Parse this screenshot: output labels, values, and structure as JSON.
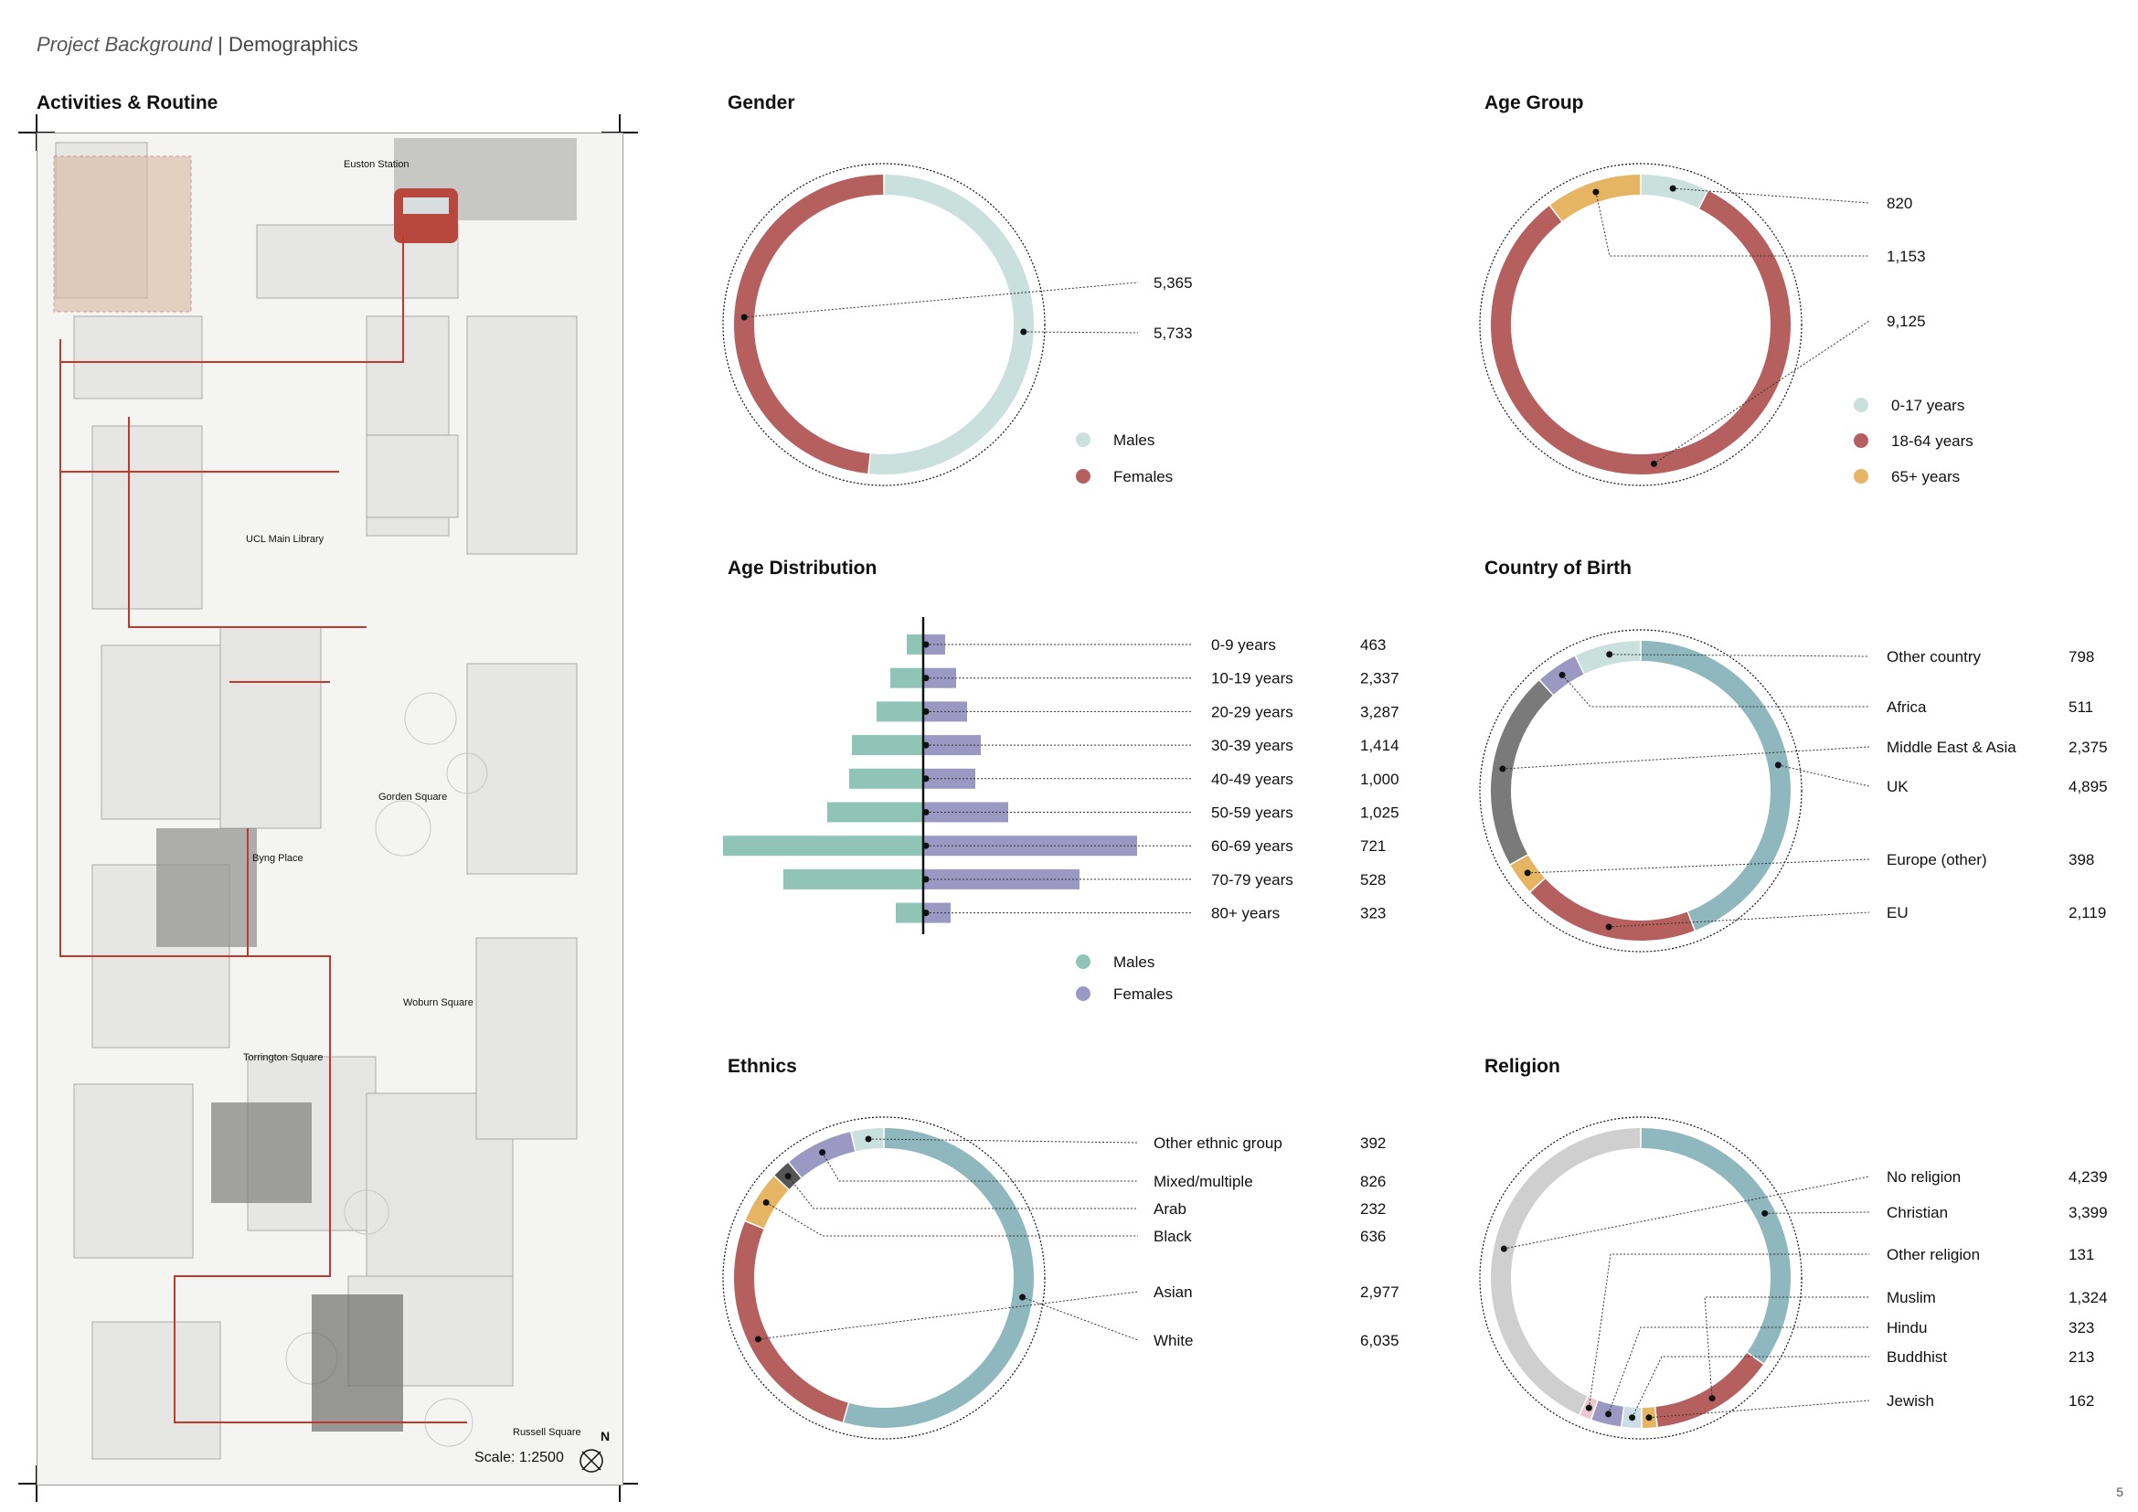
{
  "header": {
    "project": "Project Background",
    "separator": " | ",
    "section": "Demographics"
  },
  "page_number": "5",
  "panels": {
    "activities": "Activities & Routine",
    "gender": "Gender",
    "age_group": "Age Group",
    "age_distribution": "Age Distribution",
    "country_of_birth": "Country of Birth",
    "ethnics": "Ethnics",
    "religion": "Religion"
  },
  "map": {
    "labels": [
      "Euston Station",
      "UCL Main Library",
      "Gorden Square",
      "Byng Place",
      "Woburn Square",
      "Torrington Square",
      "Russell Square"
    ],
    "scale": "Scale: 1:2500",
    "north": "N"
  },
  "colors": {
    "males_light": "#c9e0dc",
    "females": "#b5605f",
    "teal": "#8fb7be",
    "male_bar": "#8fc4b6",
    "female_bar": "#9c98c4",
    "yellow": "#e6b564",
    "grey": "#7a7a7a",
    "lightgrey": "#cfcfcf",
    "lavender": "#9c98c4",
    "pink": "#e9c9cf",
    "paleblue": "#cddde6"
  },
  "chart_data": [
    {
      "type": "pie",
      "title": "Gender",
      "slices": [
        {
          "label": "Males",
          "value": 5733,
          "color": "#c9e0dc"
        },
        {
          "label": "Females",
          "value": 5365,
          "color": "#b5605f"
        }
      ],
      "value_labels": [
        "5,365",
        "5,733"
      ],
      "legend": [
        "Males",
        "Females"
      ]
    },
    {
      "type": "pie",
      "title": "Age Group",
      "slices": [
        {
          "label": "0-17 years",
          "value": 820,
          "color": "#c9e0dc"
        },
        {
          "label": "18-64 years",
          "value": 9125,
          "color": "#b5605f"
        },
        {
          "label": "65+ years",
          "value": 1153,
          "color": "#e6b564"
        }
      ],
      "value_labels": [
        "820",
        "1,153",
        "9,125"
      ],
      "legend": [
        "0-17 years",
        "18-64 years",
        "65+ years"
      ]
    },
    {
      "type": "bar",
      "title": "Age Distribution",
      "categories": [
        "0-9 years",
        "10-19 years",
        "20-29 years",
        "30-39 years",
        "40-49 years",
        "50-59 years",
        "60-69 years",
        "70-79 years",
        "80+ years"
      ],
      "value_labels": [
        "463",
        "2,337",
        "3,287",
        "1,414",
        "1,000",
        "1,025",
        "721",
        "528",
        "323"
      ],
      "series": [
        {
          "name": "Males",
          "values": [
            6,
            12,
            17,
            26,
            27,
            35,
            73,
            51,
            10
          ]
        },
        {
          "name": "Females",
          "values": [
            8,
            12,
            16,
            21,
            19,
            31,
            78,
            57,
            10
          ]
        }
      ],
      "legend": [
        "Males",
        "Females"
      ]
    },
    {
      "type": "pie",
      "title": "Country of Birth",
      "slices": [
        {
          "label": "UK",
          "value": 4895,
          "color": "#8fb7be"
        },
        {
          "label": "EU",
          "value": 2119,
          "color": "#b5605f"
        },
        {
          "label": "Europe (other)",
          "value": 398,
          "color": "#e6b564"
        },
        {
          "label": "Middle East & Asia",
          "value": 2375,
          "color": "#7a7a7a"
        },
        {
          "label": "Africa",
          "value": 511,
          "color": "#9c98c4"
        },
        {
          "label": "Other country",
          "value": 798,
          "color": "#c9e0dc"
        }
      ],
      "legend_rows": [
        {
          "label": "Other country",
          "value": "798"
        },
        {
          "label": "Africa",
          "value": "511"
        },
        {
          "label": "Middle East & Asia",
          "value": "2,375"
        },
        {
          "label": "UK",
          "value": "4,895"
        },
        {
          "label": "Europe (other)",
          "value": "398"
        },
        {
          "label": "EU",
          "value": "2,119"
        }
      ]
    },
    {
      "type": "pie",
      "title": "Ethnics",
      "slices": [
        {
          "label": "White",
          "value": 6035,
          "color": "#8fb7be"
        },
        {
          "label": "Asian",
          "value": 2977,
          "color": "#b5605f"
        },
        {
          "label": "Black",
          "value": 636,
          "color": "#e6b564"
        },
        {
          "label": "Arab",
          "value": 232,
          "color": "#555555"
        },
        {
          "label": "Mixed/multiple",
          "value": 826,
          "color": "#9c98c4"
        },
        {
          "label": "Other ethnic group",
          "value": 392,
          "color": "#c9e0dc"
        }
      ],
      "legend_rows": [
        {
          "label": "Other ethnic group",
          "value": "392"
        },
        {
          "label": "Mixed/multiple",
          "value": "826"
        },
        {
          "label": "Arab",
          "value": "232"
        },
        {
          "label": "Black",
          "value": "636"
        },
        {
          "label": "Asian",
          "value": "2,977"
        },
        {
          "label": "White",
          "value": "6,035"
        }
      ]
    },
    {
      "type": "pie",
      "title": "Religion",
      "slices": [
        {
          "label": "Christian",
          "value": 3399,
          "color": "#8fb7be"
        },
        {
          "label": "Muslim",
          "value": 1324,
          "color": "#b5605f"
        },
        {
          "label": "Jewish",
          "value": 162,
          "color": "#e6b564"
        },
        {
          "label": "Buddhist",
          "value": 213,
          "color": "#cddde6"
        },
        {
          "label": "Hindu",
          "value": 323,
          "color": "#9c98c4"
        },
        {
          "label": "Other religion",
          "value": 131,
          "color": "#e9c9cf"
        },
        {
          "label": "No religion",
          "value": 4239,
          "color": "#cfcfcf"
        }
      ],
      "legend_rows": [
        {
          "label": "No religion",
          "value": "4,239"
        },
        {
          "label": "Christian",
          "value": "3,399"
        },
        {
          "label": "Other religion",
          "value": "131"
        },
        {
          "label": "Muslim",
          "value": "1,324"
        },
        {
          "label": "Hindu",
          "value": "323"
        },
        {
          "label": "Buddhist",
          "value": "213"
        },
        {
          "label": "Jewish",
          "value": "162"
        }
      ]
    }
  ]
}
